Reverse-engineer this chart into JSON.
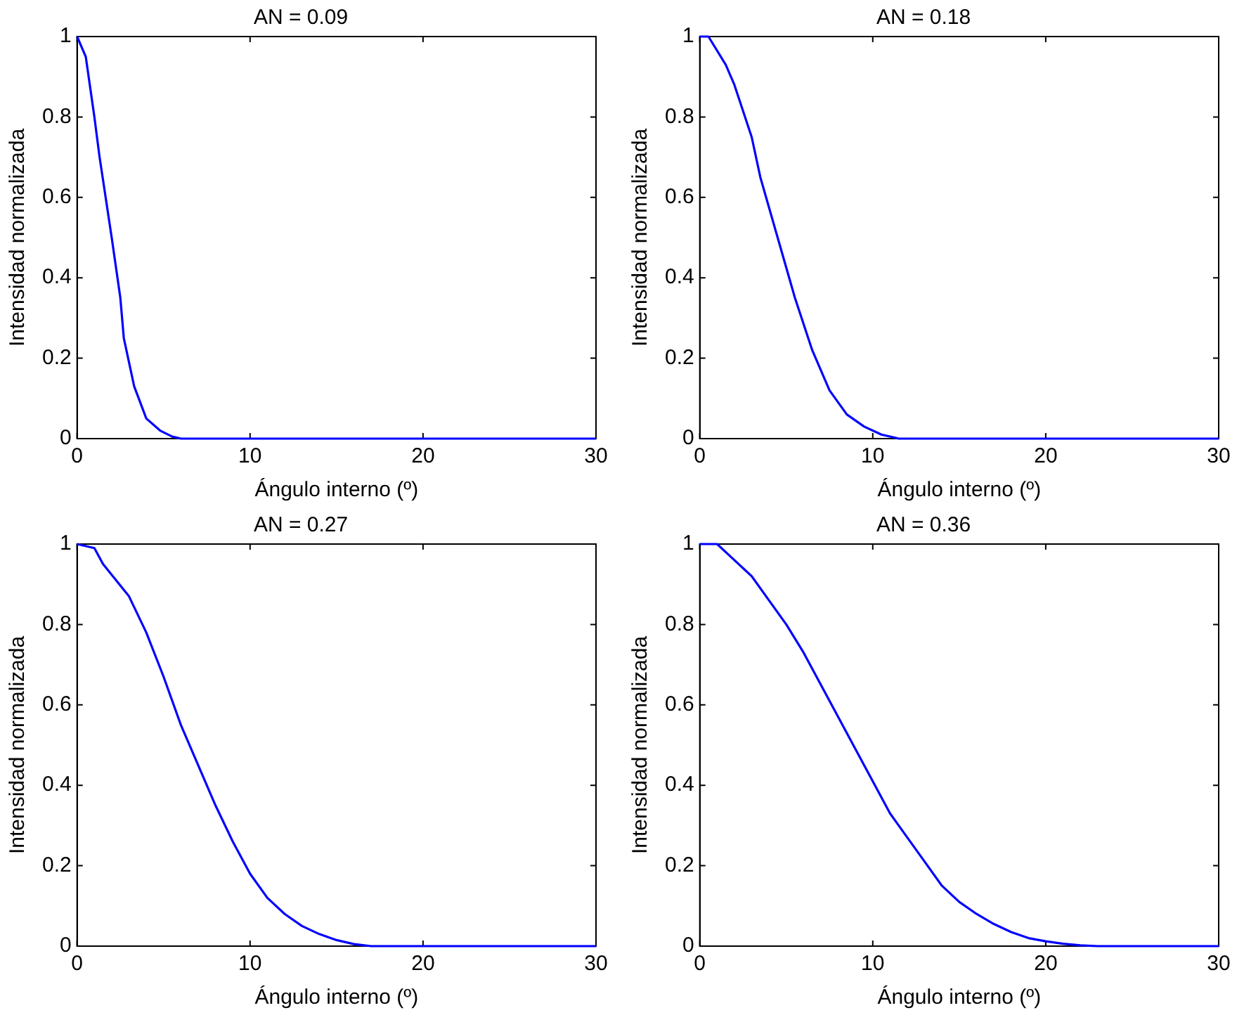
{
  "chart_data": [
    {
      "type": "line",
      "title": "AN = 0.09",
      "xlabel": "Ángulo interno (º)",
      "ylabel": "Intensidad normalizada",
      "xlim": [
        0,
        30
      ],
      "xticks": [
        0,
        10,
        20,
        30
      ],
      "ylim": [
        0,
        1
      ],
      "yticks": [
        0,
        0.2,
        0.4,
        0.6,
        0.8,
        1
      ],
      "grid": false,
      "legend": false,
      "marker": "none",
      "line_style": "solid",
      "series": [
        {
          "color": "#0000ff",
          "x": [
            0,
            0.5,
            1,
            1.3,
            2,
            2.5,
            2.7,
            3.3,
            4,
            4.8,
            5.5,
            6,
            30
          ],
          "values": [
            1,
            0.95,
            0.8,
            0.7,
            0.5,
            0.35,
            0.25,
            0.13,
            0.05,
            0.02,
            0.005,
            0,
            0
          ]
        }
      ]
    },
    {
      "type": "line",
      "title": "AN = 0.18",
      "xlabel": "Ángulo interno (º)",
      "ylabel": "Intensidad normalizada",
      "xlim": [
        0,
        30
      ],
      "xticks": [
        0,
        10,
        20,
        30
      ],
      "ylim": [
        0,
        1
      ],
      "yticks": [
        0,
        0.2,
        0.4,
        0.6,
        0.8,
        1
      ],
      "grid": false,
      "legend": false,
      "marker": "none",
      "line_style": "solid",
      "series": [
        {
          "color": "#0000ff",
          "x": [
            0,
            0.5,
            1.5,
            2,
            3,
            3.5,
            4.5,
            5.5,
            6.5,
            7.5,
            8.5,
            9.5,
            10.5,
            11.5,
            30
          ],
          "values": [
            1,
            1,
            0.93,
            0.88,
            0.75,
            0.65,
            0.5,
            0.35,
            0.22,
            0.12,
            0.06,
            0.03,
            0.01,
            0,
            0
          ]
        }
      ]
    },
    {
      "type": "line",
      "title": "AN = 0.27",
      "xlabel": "Ángulo interno (º)",
      "ylabel": "Intensidad normalizada",
      "xlim": [
        0,
        30
      ],
      "xticks": [
        0,
        10,
        20,
        30
      ],
      "ylim": [
        0,
        1
      ],
      "yticks": [
        0,
        0.2,
        0.4,
        0.6,
        0.8,
        1
      ],
      "grid": false,
      "legend": false,
      "marker": "none",
      "line_style": "solid",
      "series": [
        {
          "color": "#0000ff",
          "x": [
            0,
            1,
            1.5,
            3,
            4,
            5,
            6,
            7,
            8,
            9,
            10,
            11,
            12,
            13,
            14,
            15,
            16,
            17,
            30
          ],
          "values": [
            1,
            0.99,
            0.95,
            0.87,
            0.78,
            0.67,
            0.55,
            0.45,
            0.35,
            0.26,
            0.18,
            0.12,
            0.08,
            0.05,
            0.03,
            0.015,
            0.005,
            0,
            0
          ]
        }
      ]
    },
    {
      "type": "line",
      "title": "AN = 0.36",
      "xlabel": "Ángulo interno (º)",
      "ylabel": "Intensidad normalizada",
      "xlim": [
        0,
        30
      ],
      "xticks": [
        0,
        10,
        20,
        30
      ],
      "ylim": [
        0,
        1
      ],
      "yticks": [
        0,
        0.2,
        0.4,
        0.6,
        0.8,
        1
      ],
      "grid": false,
      "legend": false,
      "marker": "none",
      "line_style": "solid",
      "series": [
        {
          "color": "#0000ff",
          "x": [
            0,
            1,
            2,
            3,
            4,
            5,
            6,
            7,
            8,
            9,
            10,
            11,
            12,
            13,
            14,
            15,
            16,
            17,
            18,
            19,
            20,
            21,
            22,
            23,
            30
          ],
          "values": [
            1,
            1,
            0.96,
            0.92,
            0.86,
            0.8,
            0.73,
            0.65,
            0.57,
            0.49,
            0.41,
            0.33,
            0.27,
            0.21,
            0.15,
            0.11,
            0.08,
            0.055,
            0.035,
            0.02,
            0.012,
            0.006,
            0.002,
            0,
            0
          ]
        }
      ]
    }
  ]
}
